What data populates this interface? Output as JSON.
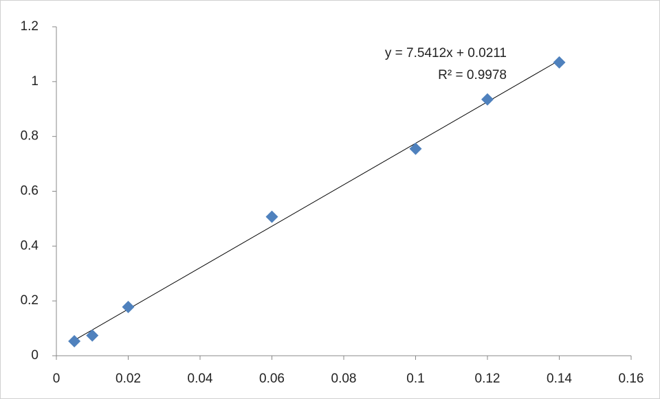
{
  "chart_data": {
    "type": "scatter",
    "x": [
      0.005,
      0.01,
      0.02,
      0.06,
      0.1,
      0.12,
      0.14
    ],
    "values": [
      0.053,
      0.074,
      0.178,
      0.507,
      0.755,
      0.935,
      1.07
    ],
    "color": "#4f81bd",
    "xlim": [
      0,
      0.16
    ],
    "xticks": [
      0,
      0.02,
      0.04,
      0.06,
      0.08,
      0.1,
      0.12,
      0.14,
      0.16
    ],
    "ylim": [
      0,
      1.2
    ],
    "yticks": [
      0,
      0.2,
      0.4,
      0.6,
      0.8,
      1,
      1.2
    ],
    "grid": false,
    "trendline": {
      "type": "linear",
      "equation": "y = 7.5412x + 0.0211",
      "r2": "R² = 0.9978"
    }
  }
}
